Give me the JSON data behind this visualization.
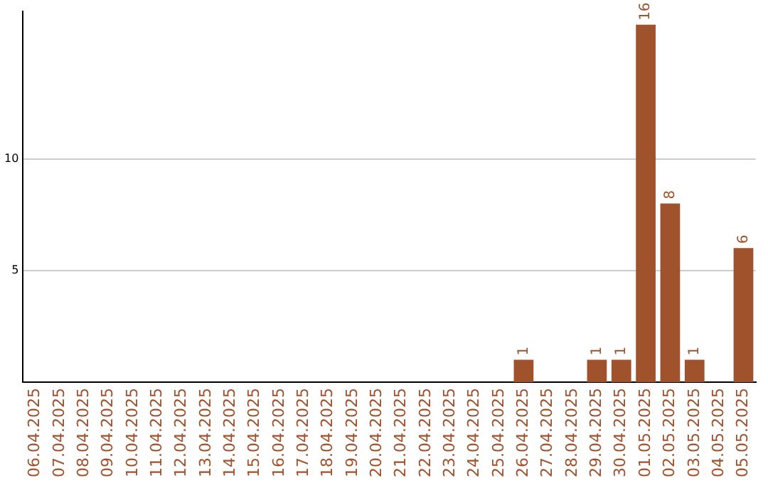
{
  "chart_data": {
    "type": "bar",
    "categories": [
      "06.04.2025",
      "07.04.2025",
      "08.04.2025",
      "09.04.2025",
      "10.04.2025",
      "11.04.2025",
      "12.04.2025",
      "13.04.2025",
      "14.04.2025",
      "15.04.2025",
      "16.04.2025",
      "17.04.2025",
      "18.04.2025",
      "19.04.2025",
      "20.04.2025",
      "21.04.2025",
      "22.04.2025",
      "23.04.2025",
      "24.04.2025",
      "25.04.2025",
      "26.04.2025",
      "27.04.2025",
      "28.04.2025",
      "29.04.2025",
      "30.04.2025",
      "01.05.2025",
      "02.05.2025",
      "03.05.2025",
      "04.05.2025",
      "05.05.2025"
    ],
    "values": [
      null,
      null,
      null,
      null,
      null,
      null,
      null,
      null,
      null,
      null,
      null,
      null,
      null,
      null,
      null,
      null,
      null,
      null,
      null,
      null,
      1,
      null,
      null,
      1,
      1,
      16,
      8,
      1,
      null,
      6
    ],
    "color": "#a0522d",
    "ylim": [
      0,
      16.6
    ],
    "yticks": [
      5,
      10
    ],
    "grid": "y",
    "legend": false,
    "data_labels": true
  }
}
